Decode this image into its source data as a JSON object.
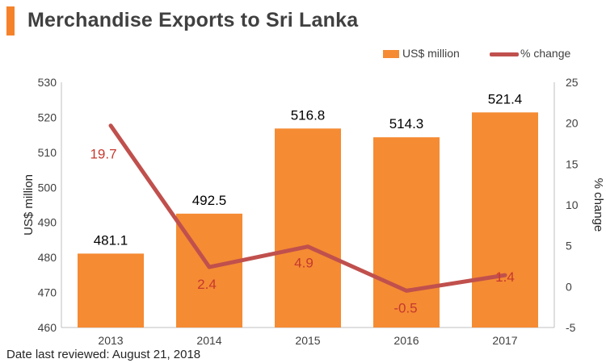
{
  "title": "Merchandise Exports to Sri Lanka",
  "footnote": "Date last reviewed: August 21, 2018",
  "colors": {
    "accent": "#f5822a",
    "bar": "#f58b33",
    "line": "#c0504d",
    "line_label": "#c6392f",
    "text": "#404040"
  },
  "chart_data": {
    "type": "bar",
    "categories": [
      "2013",
      "2014",
      "2015",
      "2016",
      "2017"
    ],
    "series": [
      {
        "name": "US$ million",
        "type": "bar",
        "axis": "left",
        "values": [
          481.1,
          492.5,
          516.8,
          514.3,
          521.4
        ],
        "labels": [
          "481.1",
          "492.5",
          "516.8",
          "514.3",
          "521.4"
        ]
      },
      {
        "name": "% change",
        "type": "line",
        "axis": "right",
        "values": [
          19.7,
          2.4,
          4.9,
          -0.5,
          1.4
        ],
        "labels": [
          "19.7",
          "2.4",
          "4.9",
          "-0.5",
          "1.4"
        ]
      }
    ],
    "ylabel": "US$ million",
    "ylim": [
      460,
      530
    ],
    "yticks": [
      "460",
      "470",
      "480",
      "490",
      "500",
      "510",
      "520",
      "530"
    ],
    "y2label": "% change",
    "y2lim": [
      -5,
      25
    ],
    "y2ticks": [
      "-5",
      "0",
      "5",
      "10",
      "15",
      "20",
      "25"
    ],
    "grid": false,
    "legend_position": "top-right"
  }
}
